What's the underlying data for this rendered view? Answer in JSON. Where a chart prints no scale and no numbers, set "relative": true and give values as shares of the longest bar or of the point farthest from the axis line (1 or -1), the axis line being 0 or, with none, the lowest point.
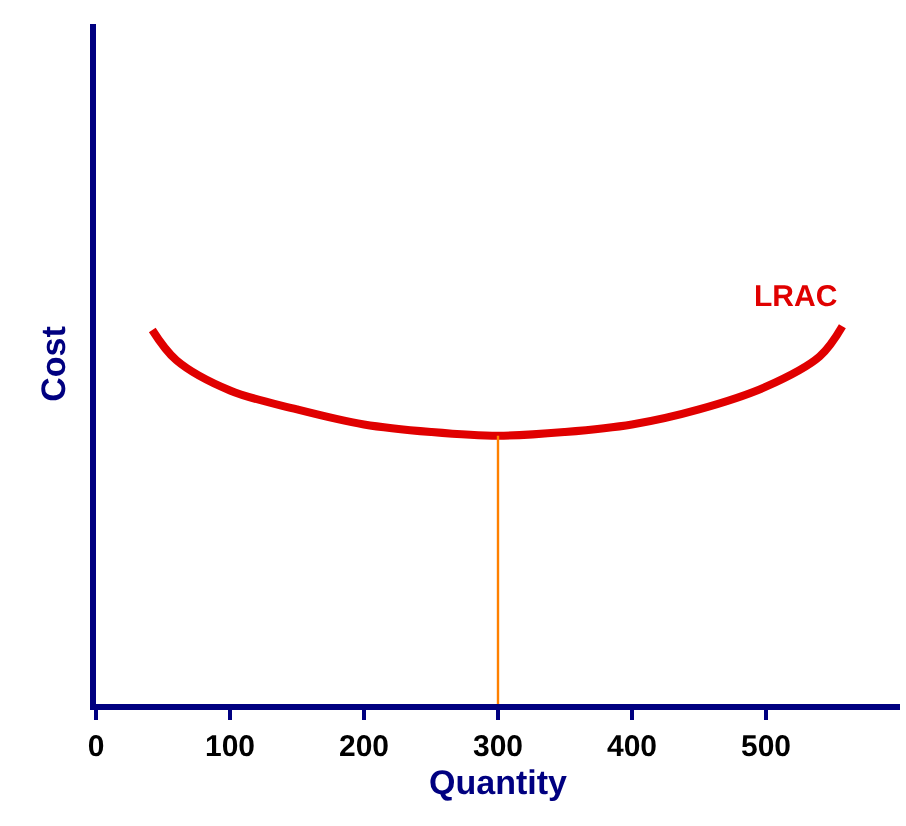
{
  "chart_data": {
    "type": "line",
    "xlabel": "Quantity",
    "ylabel": "Cost",
    "relative": true,
    "xlim": [
      0,
      600
    ],
    "xticks": [
      0,
      100,
      200,
      300,
      400,
      500
    ],
    "legend": false,
    "grid": false,
    "marker": "none",
    "line_style": "solid",
    "series": [
      {
        "name": "LRAC",
        "color": "#e00000",
        "x": [
          42,
          60,
          100,
          150,
          200,
          250,
          300,
          350,
          400,
          450,
          500,
          540,
          557
        ],
        "values": [
          0.99,
          0.91,
          0.83,
          0.78,
          0.74,
          0.72,
          0.71,
          0.72,
          0.74,
          0.78,
          0.84,
          0.92,
          1
        ]
      },
      {
        "color": "#ff8000",
        "x": [
          300,
          300
        ],
        "values": [
          0,
          0.71
        ]
      }
    ]
  }
}
